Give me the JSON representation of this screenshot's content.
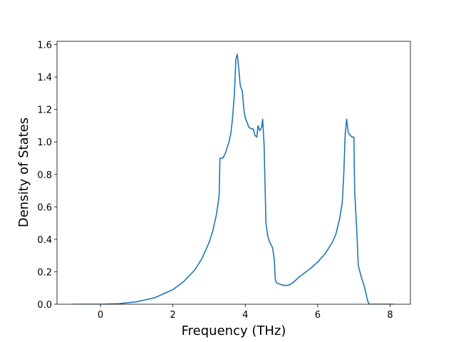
{
  "chart_data": {
    "type": "line",
    "xlabel": "Frequency (THz)",
    "ylabel": "Density of States",
    "color": "#1f77b4",
    "x": [
      -0.76,
      0,
      0.5,
      1,
      1.5,
      2,
      2.3,
      2.6,
      2.8,
      3.0,
      3.1,
      3.2,
      3.25,
      3.28,
      3.3,
      3.38,
      3.45,
      3.55,
      3.6,
      3.65,
      3.7,
      3.74,
      3.78,
      3.82,
      3.86,
      3.92,
      3.96,
      4.0,
      4.05,
      4.1,
      4.18,
      4.22,
      4.27,
      4.32,
      4.35,
      4.4,
      4.45,
      4.48,
      4.52,
      4.57,
      4.62,
      4.68,
      4.75,
      4.8,
      4.83,
      4.87,
      5.0,
      5.1,
      5.2,
      5.3,
      5.5,
      5.8,
      6.0,
      6.2,
      6.4,
      6.5,
      6.6,
      6.68,
      6.72,
      6.76,
      6.8,
      6.84,
      6.9,
      6.95,
      7.0,
      7.02,
      7.08,
      7.12,
      7.2,
      7.3,
      7.38,
      7.42,
      8.1
    ],
    "values": [
      0,
      0,
      0.003,
      0.015,
      0.04,
      0.09,
      0.14,
      0.21,
      0.28,
      0.38,
      0.45,
      0.55,
      0.62,
      0.68,
      0.9,
      0.9,
      0.93,
      1.0,
      1.05,
      1.15,
      1.3,
      1.51,
      1.54,
      1.45,
      1.35,
      1.31,
      1.2,
      1.15,
      1.12,
      1.09,
      1.08,
      1.08,
      1.04,
      1.03,
      1.1,
      1.07,
      1.09,
      1.14,
      0.98,
      0.5,
      0.42,
      0.38,
      0.35,
      0.28,
      0.15,
      0.13,
      0.12,
      0.115,
      0.118,
      0.13,
      0.17,
      0.22,
      0.26,
      0.31,
      0.38,
      0.43,
      0.52,
      0.63,
      0.8,
      1.05,
      1.14,
      1.06,
      1.04,
      1.03,
      1.03,
      0.7,
      0.45,
      0.24,
      0.17,
      0.1,
      0.02,
      0,
      0
    ],
    "xlim": [
      -1.2,
      8.56
    ],
    "xticks": [
      0,
      2,
      4,
      6,
      8
    ],
    "ylim": [
      0,
      1.62
    ],
    "yticks": [
      {
        "value": 0,
        "label": "0.0"
      },
      {
        "value": 0.2,
        "label": "0.2"
      },
      {
        "value": 0.4,
        "label": "0.4"
      },
      {
        "value": 0.6,
        "label": "0.6"
      },
      {
        "value": 0.8,
        "label": "0.8"
      },
      {
        "value": 1.0,
        "label": "1.0"
      },
      {
        "value": 1.2,
        "label": "1.2"
      },
      {
        "value": 1.4,
        "label": "1.4"
      },
      {
        "value": 1.6,
        "label": "1.6"
      }
    ],
    "grid": false
  }
}
